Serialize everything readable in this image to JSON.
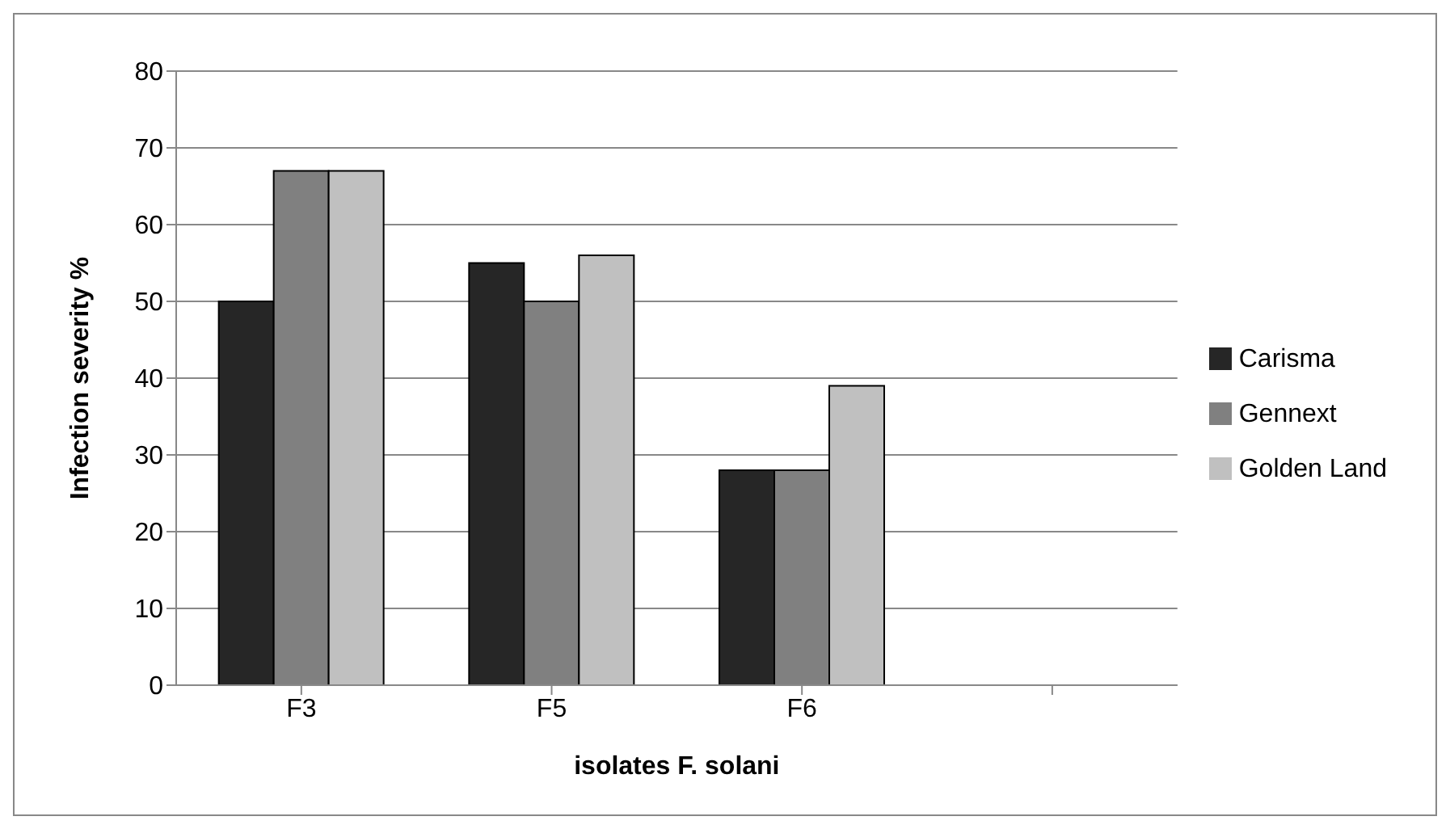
{
  "chart_data": {
    "type": "bar",
    "xlabel": "isolates F. solani",
    "ylabel": "Infection severity %",
    "categories": [
      "F3",
      "F5",
      "F6",
      null
    ],
    "series": [
      {
        "name": "Carisma",
        "color": "#262626",
        "values": [
          50,
          55,
          28,
          null
        ]
      },
      {
        "name": "Gennext",
        "color": "#808080",
        "values": [
          67,
          50,
          28,
          null
        ]
      },
      {
        "name": "Golden Land",
        "color": "#c0c0c0",
        "values": [
          67,
          56,
          39,
          null
        ]
      }
    ],
    "ylim": [
      0,
      80
    ],
    "yticks": [
      0,
      10,
      20,
      30,
      40,
      50,
      60,
      70,
      80
    ],
    "grid": "y",
    "legend": "right"
  }
}
